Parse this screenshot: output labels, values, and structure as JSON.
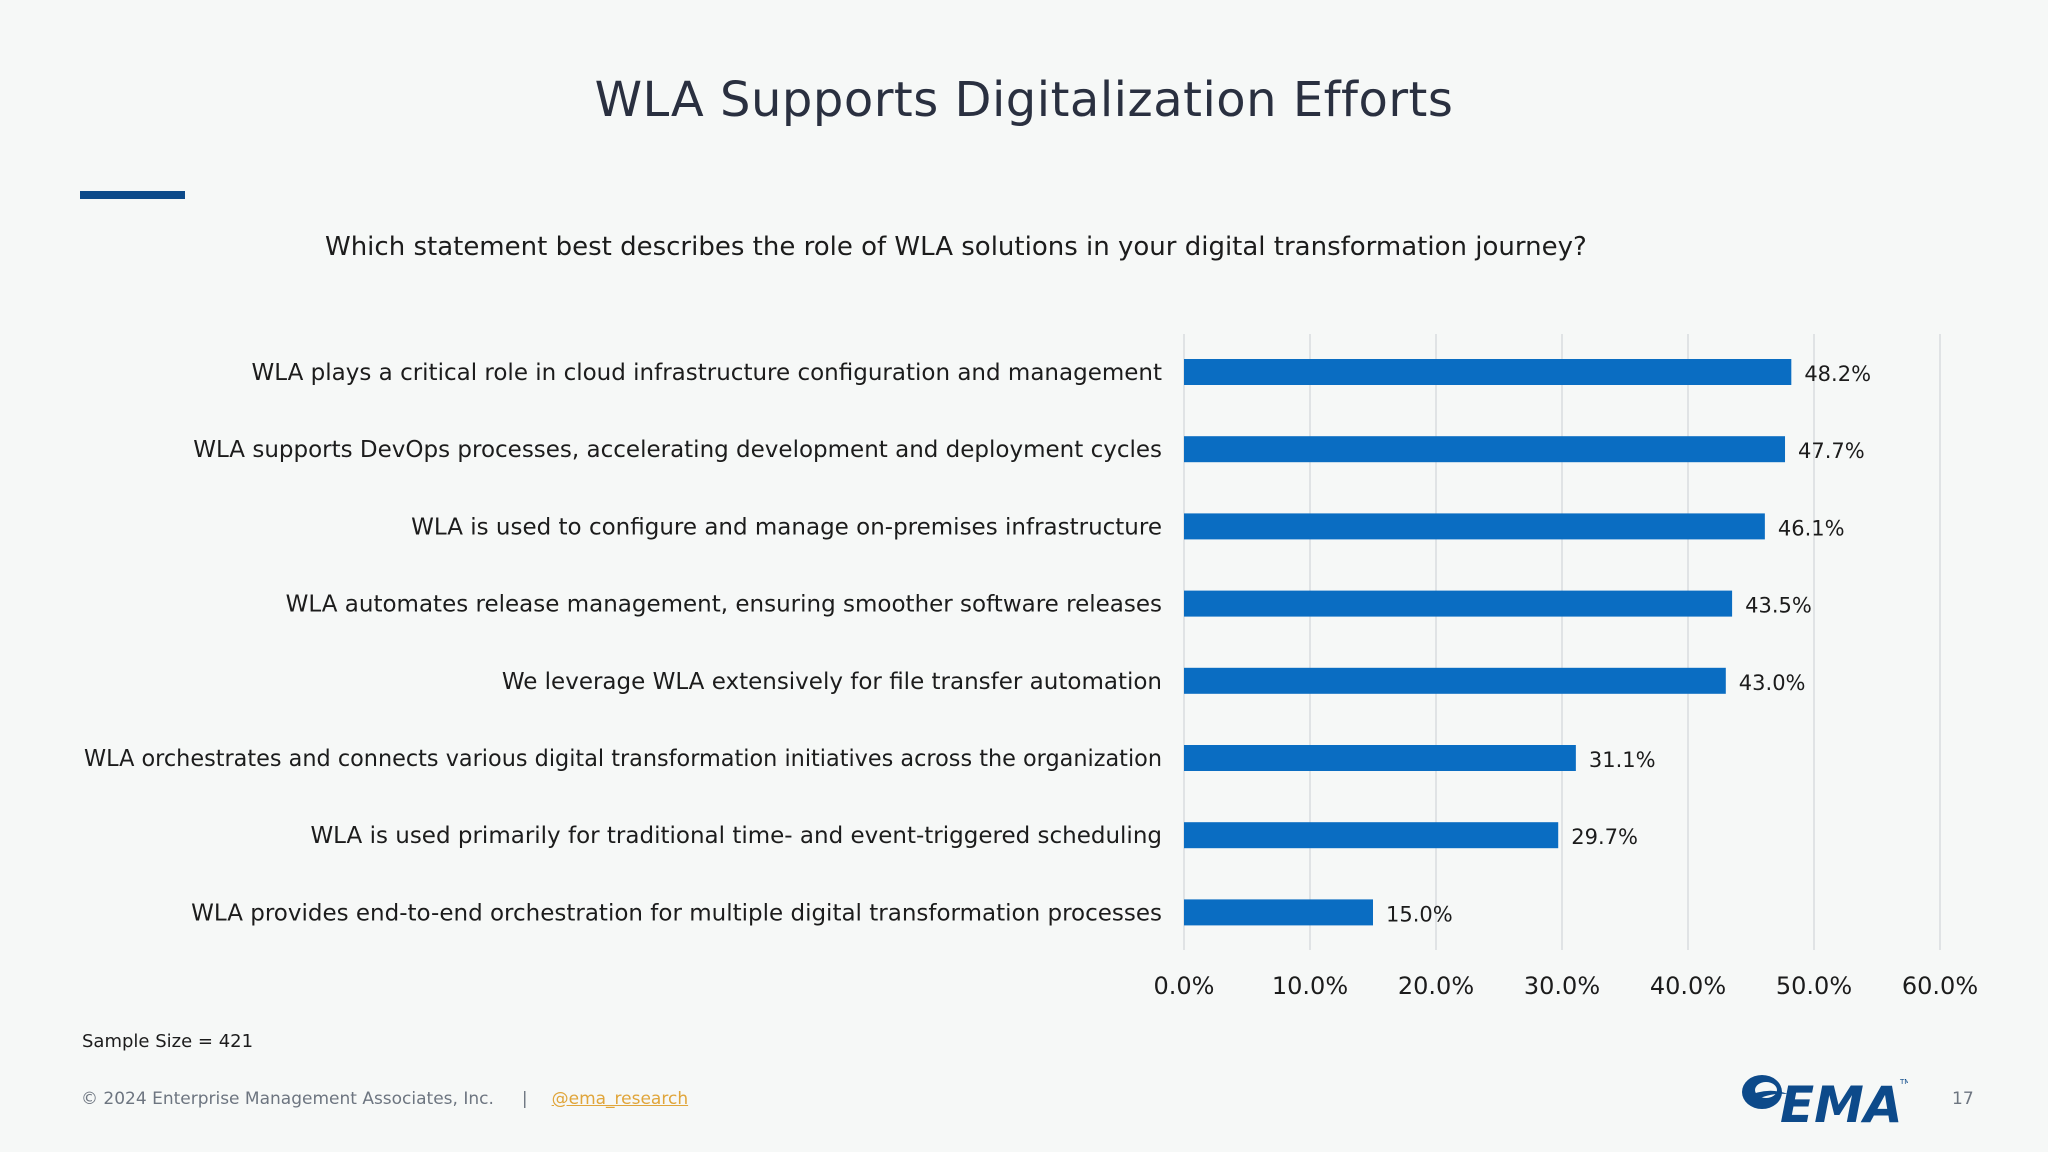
{
  "slide": {
    "title": "WLA Supports Digitalization Efforts",
    "question": "Which statement best describes the role of WLA solutions in your digital transformation journey?",
    "sample_size": "Sample Size = 421",
    "copyright": "© 2024 Enterprise Management Associates, Inc.",
    "separator": "|",
    "handle": "@ema_research",
    "logo_text": "EMA",
    "page_number": "17"
  },
  "colors": {
    "bar": "#0a6dc2",
    "accent": "#0d4a8a",
    "grid": "#d9dcdf",
    "logo": "#0d4a8a"
  },
  "chart_data": {
    "type": "bar",
    "orientation": "horizontal",
    "title": "",
    "xlabel": "",
    "ylabel": "",
    "categories": [
      "WLA plays a critical role in cloud infrastructure configuration and management",
      "WLA supports DevOps processes, accelerating development and deployment cycles",
      "WLA is used to configure and manage on-premises infrastructure",
      "WLA automates release management, ensuring smoother software releases",
      "We leverage WLA extensively for file transfer automation",
      "WLA orchestrates and connects various digital transformation initiatives across the organization",
      "WLA is used primarily for traditional time- and event-triggered scheduling",
      "WLA provides end-to-end orchestration for multiple digital transformation processes"
    ],
    "values": [
      48.2,
      47.7,
      46.1,
      43.5,
      43.0,
      31.1,
      29.7,
      15.0
    ],
    "data_labels": [
      "48.2%",
      "47.7%",
      "46.1%",
      "43.5%",
      "43.0%",
      "31.1%",
      "29.7%",
      "15.0%"
    ],
    "xlim": [
      0,
      60
    ],
    "x_ticks": [
      "0.0%",
      "10.0%",
      "20.0%",
      "30.0%",
      "40.0%",
      "50.0%",
      "60.0%"
    ],
    "grid": true,
    "legend": "none"
  }
}
